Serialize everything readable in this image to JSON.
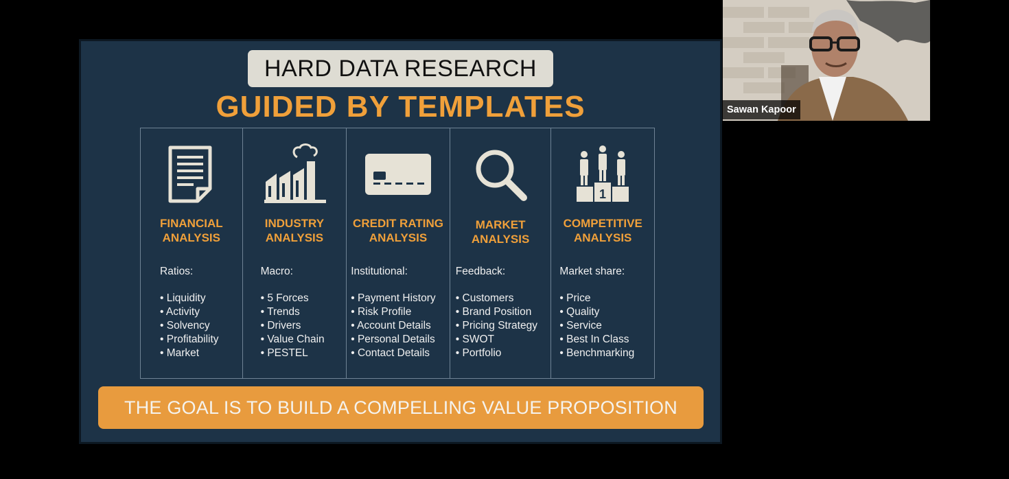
{
  "slide": {
    "title": "HARD DATA RESEARCH",
    "subtitle": "GUIDED BY TEMPLATES",
    "columns": [
      {
        "icon": "document-icon",
        "title": "FINANCIAL\nANALYSIS",
        "heading": "Ratios:",
        "items": [
          "Liquidity",
          "Activity",
          "Solvency",
          "Profitability",
          "Market"
        ]
      },
      {
        "icon": "factory-icon",
        "title": "INDUSTRY\nANALYSIS",
        "heading": "Macro:",
        "items": [
          "5 Forces",
          "Trends",
          "Drivers",
          "Value Chain",
          "PESTEL"
        ]
      },
      {
        "icon": "credit-card-icon",
        "title": "CREDIT RATING\nANALYSIS",
        "heading": "Institutional:",
        "items": [
          "Payment History",
          "Risk Profile",
          "Account Details",
          "Personal Details",
          "Contact Details"
        ]
      },
      {
        "icon": "magnifier-icon",
        "title": "MARKET\nANALYSIS",
        "heading": "Feedback:",
        "items": [
          "Customers",
          "Brand Position",
          "Pricing Strategy",
          "SWOT",
          "Portfolio"
        ]
      },
      {
        "icon": "podium-icon",
        "title": "COMPETITIVE\nANALYSIS",
        "heading": "Market share:",
        "items": [
          "Price",
          "Quality",
          "Service",
          "Best In Class",
          "Benchmarking"
        ]
      }
    ],
    "podium_number": "1",
    "banner": "THE GOAL IS TO BUILD A COMPELLING VALUE PROPOSITION"
  },
  "participant": {
    "name": "Sawan Kapoor"
  },
  "colors": {
    "slide_bg": "#1d3347",
    "accent_orange": "#f0a03a",
    "banner_bg": "#e89b3e",
    "icon_color": "#e6e2d6"
  }
}
